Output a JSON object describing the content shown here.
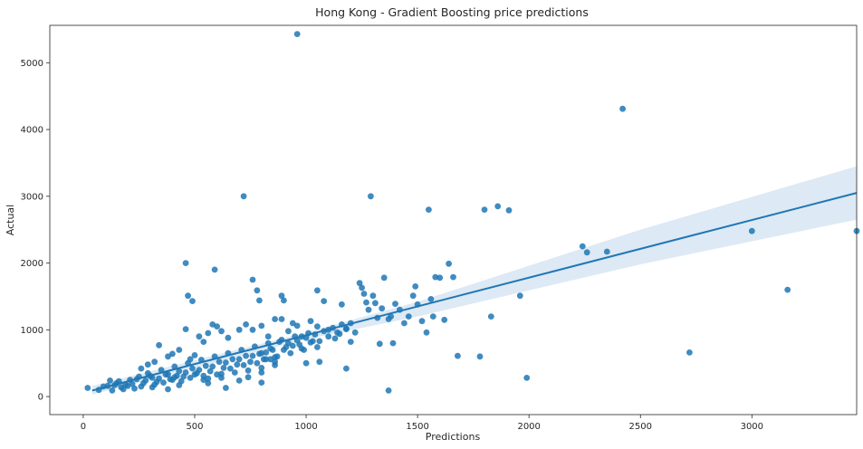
{
  "chart_data": {
    "type": "scatter",
    "title": "Hong Kong - Gradient Boosting price predictions",
    "xlabel": "Predictions",
    "ylabel": "Actual",
    "xlim": [
      -150,
      3470
    ],
    "ylim": [
      -270,
      5560
    ],
    "xticks": [
      0,
      500,
      1000,
      1500,
      2000,
      2500,
      3000
    ],
    "yticks": [
      0,
      1000,
      2000,
      3000,
      4000,
      5000
    ],
    "grid": false,
    "legend": "none",
    "colors": {
      "points": "#1f77b4",
      "line": "#1f77b4",
      "band": "#c6dbef"
    },
    "regression": {
      "x": [
        40,
        3470
      ],
      "y": [
        90,
        3050
      ]
    },
    "confidence_band": {
      "x": [
        40,
        1000,
        1500,
        2500,
        3470
      ],
      "lower": [
        30,
        860,
        1200,
        1980,
        2650
      ],
      "upper": [
        160,
        960,
        1420,
        2500,
        3450
      ]
    },
    "points": [
      [
        20,
        130
      ],
      [
        70,
        100
      ],
      [
        90,
        150
      ],
      [
        110,
        160
      ],
      [
        130,
        90
      ],
      [
        150,
        200
      ],
      [
        170,
        140
      ],
      [
        190,
        180
      ],
      [
        210,
        250
      ],
      [
        230,
        120
      ],
      [
        250,
        300
      ],
      [
        270,
        200
      ],
      [
        290,
        350
      ],
      [
        310,
        280
      ],
      [
        330,
        220
      ],
      [
        350,
        400
      ],
      [
        370,
        330
      ],
      [
        390,
        260
      ],
      [
        410,
        450
      ],
      [
        430,
        380
      ],
      [
        450,
        300
      ],
      [
        470,
        500
      ],
      [
        490,
        420
      ],
      [
        510,
        350
      ],
      [
        530,
        550
      ],
      [
        550,
        460
      ],
      [
        570,
        380
      ],
      [
        590,
        600
      ],
      [
        610,
        520
      ],
      [
        630,
        430
      ],
      [
        650,
        650
      ],
      [
        670,
        560
      ],
      [
        690,
        480
      ],
      [
        710,
        700
      ],
      [
        730,
        610
      ],
      [
        750,
        520
      ],
      [
        770,
        750
      ],
      [
        790,
        640
      ],
      [
        810,
        560
      ],
      [
        830,
        800
      ],
      [
        850,
        700
      ],
      [
        870,
        600
      ],
      [
        890,
        850
      ],
      [
        910,
        740
      ],
      [
        930,
        650
      ],
      [
        950,
        900
      ],
      [
        970,
        780
      ],
      [
        990,
        700
      ],
      [
        1010,
        950
      ],
      [
        1030,
        830
      ],
      [
        1050,
        740
      ],
      [
        120,
        240
      ],
      [
        140,
        170
      ],
      [
        160,
        230
      ],
      [
        180,
        110
      ],
      [
        200,
        160
      ],
      [
        220,
        190
      ],
      [
        240,
        260
      ],
      [
        260,
        150
      ],
      [
        280,
        240
      ],
      [
        300,
        310
      ],
      [
        320,
        180
      ],
      [
        340,
        270
      ],
      [
        360,
        210
      ],
      [
        380,
        330
      ],
      [
        400,
        250
      ],
      [
        420,
        310
      ],
      [
        440,
        230
      ],
      [
        460,
        360
      ],
      [
        480,
        280
      ],
      [
        500,
        330
      ],
      [
        520,
        400
      ],
      [
        540,
        310
      ],
      [
        560,
        270
      ],
      [
        580,
        450
      ],
      [
        600,
        330
      ],
      [
        620,
        280
      ],
      [
        640,
        510
      ],
      [
        660,
        420
      ],
      [
        680,
        360
      ],
      [
        700,
        560
      ],
      [
        720,
        470
      ],
      [
        740,
        390
      ],
      [
        760,
        610
      ],
      [
        780,
        500
      ],
      [
        800,
        430
      ],
      [
        820,
        660
      ],
      [
        840,
        560
      ],
      [
        860,
        470
      ],
      [
        260,
        420
      ],
      [
        290,
        480
      ],
      [
        320,
        520
      ],
      [
        340,
        770
      ],
      [
        380,
        600
      ],
      [
        400,
        640
      ],
      [
        430,
        700
      ],
      [
        460,
        1010
      ],
      [
        480,
        560
      ],
      [
        500,
        620
      ],
      [
        520,
        900
      ],
      [
        540,
        820
      ],
      [
        560,
        950
      ],
      [
        580,
        1080
      ],
      [
        600,
        1050
      ],
      [
        620,
        980
      ],
      [
        650,
        880
      ],
      [
        700,
        1000
      ],
      [
        730,
        1080
      ],
      [
        760,
        1000
      ],
      [
        800,
        1060
      ],
      [
        830,
        900
      ],
      [
        860,
        1160
      ],
      [
        890,
        1160
      ],
      [
        920,
        980
      ],
      [
        940,
        1100
      ],
      [
        960,
        1060
      ],
      [
        980,
        900
      ],
      [
        1020,
        1130
      ],
      [
        1050,
        1050
      ],
      [
        1050,
        1590
      ],
      [
        1080,
        1430
      ],
      [
        1100,
        1000
      ],
      [
        1130,
        870
      ],
      [
        1150,
        940
      ],
      [
        1160,
        1380
      ],
      [
        1180,
        1020
      ],
      [
        1200,
        820
      ],
      [
        1220,
        960
      ],
      [
        1240,
        1700
      ],
      [
        1250,
        1630
      ],
      [
        1260,
        1540
      ],
      [
        1270,
        1410
      ],
      [
        1280,
        1300
      ],
      [
        1300,
        1510
      ],
      [
        1310,
        1400
      ],
      [
        1320,
        1180
      ],
      [
        1340,
        1320
      ],
      [
        1350,
        1780
      ],
      [
        1370,
        1160
      ],
      [
        1380,
        1200
      ],
      [
        1400,
        1390
      ],
      [
        1420,
        1300
      ],
      [
        1440,
        1100
      ],
      [
        1460,
        1200
      ],
      [
        1480,
        1510
      ],
      [
        1490,
        1650
      ],
      [
        1500,
        1380
      ],
      [
        1520,
        1130
      ],
      [
        1540,
        960
      ],
      [
        1560,
        1460
      ],
      [
        1570,
        1200
      ],
      [
        1580,
        1790
      ],
      [
        1600,
        1780
      ],
      [
        1620,
        1150
      ],
      [
        1640,
        1990
      ],
      [
        1660,
        1790
      ],
      [
        800,
        650
      ],
      [
        820,
        560
      ],
      [
        840,
        720
      ],
      [
        860,
        590
      ],
      [
        880,
        820
      ],
      [
        900,
        700
      ],
      [
        920,
        800
      ],
      [
        940,
        760
      ],
      [
        960,
        840
      ],
      [
        980,
        720
      ],
      [
        1000,
        880
      ],
      [
        1020,
        810
      ],
      [
        1040,
        930
      ],
      [
        1060,
        830
      ],
      [
        1080,
        980
      ],
      [
        1100,
        900
      ],
      [
        1120,
        1030
      ],
      [
        1140,
        960
      ],
      [
        1160,
        1080
      ],
      [
        1180,
        1010
      ],
      [
        1200,
        1100
      ],
      [
        460,
        2000
      ],
      [
        470,
        1510
      ],
      [
        490,
        1430
      ],
      [
        590,
        1900
      ],
      [
        760,
        1750
      ],
      [
        780,
        1590
      ],
      [
        790,
        1440
      ],
      [
        890,
        1510
      ],
      [
        900,
        1440
      ],
      [
        720,
        3000
      ],
      [
        1290,
        3000
      ],
      [
        960,
        5430
      ],
      [
        1550,
        2800
      ],
      [
        1800,
        2800
      ],
      [
        1860,
        2850
      ],
      [
        1910,
        2790
      ],
      [
        2420,
        4310
      ],
      [
        2260,
        2160
      ],
      [
        2240,
        2250
      ],
      [
        2350,
        2170
      ],
      [
        3000,
        2480
      ],
      [
        3470,
        2480
      ],
      [
        1960,
        1510
      ],
      [
        1830,
        1200
      ],
      [
        3160,
        1600
      ],
      [
        2720,
        660
      ],
      [
        1990,
        280
      ],
      [
        1780,
        600
      ],
      [
        1680,
        610
      ],
      [
        1370,
        90
      ],
      [
        1180,
        420
      ],
      [
        1330,
        790
      ],
      [
        1390,
        800
      ],
      [
        1060,
        520
      ],
      [
        1000,
        500
      ],
      [
        860,
        520
      ],
      [
        800,
        360
      ],
      [
        800,
        210
      ],
      [
        740,
        290
      ],
      [
        700,
        240
      ],
      [
        640,
        130
      ],
      [
        620,
        340
      ],
      [
        560,
        200
      ],
      [
        540,
        250
      ],
      [
        430,
        170
      ],
      [
        410,
        290
      ],
      [
        380,
        110
      ],
      [
        310,
        140
      ]
    ]
  }
}
